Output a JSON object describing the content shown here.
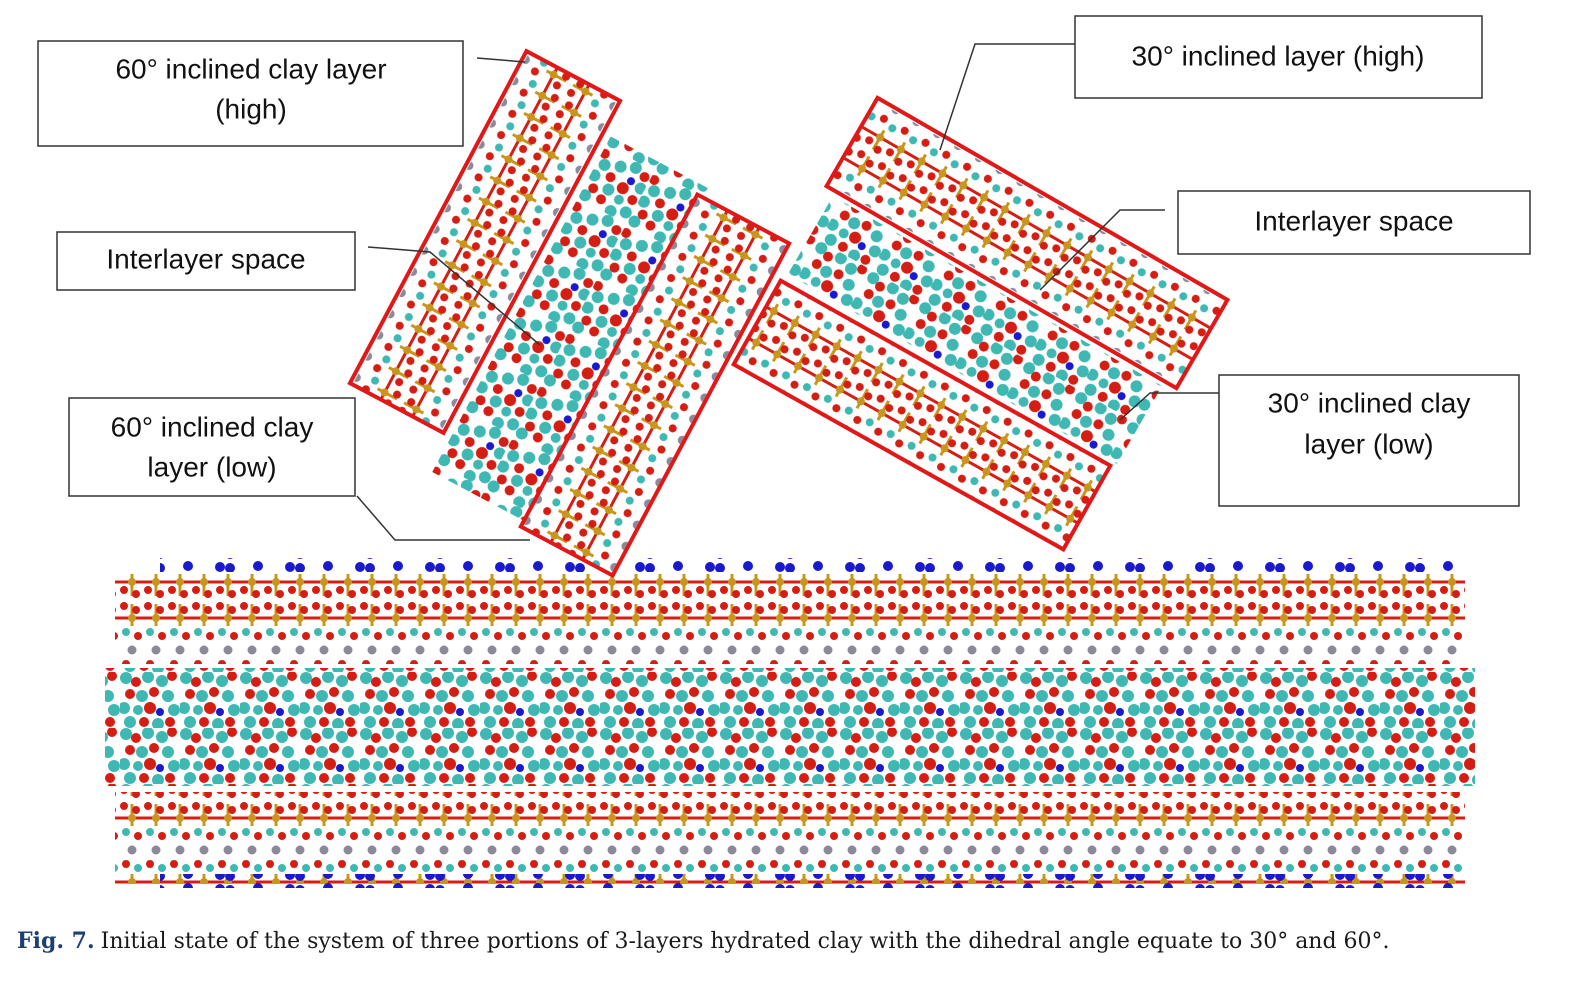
{
  "figure": {
    "labels": [
      {
        "lines": [
          "60°  inclined clay layer",
          "(high)"
        ]
      },
      {
        "lines": [
          "Interlayer space"
        ]
      },
      {
        "lines": [
          "60°  inclined clay",
          "layer (low)"
        ]
      },
      {
        "lines": [
          "30°  inclined layer (high)"
        ]
      },
      {
        "lines": [
          "Interlayer space"
        ]
      },
      {
        "lines": [
          "30°  inclined clay",
          "layer (low)"
        ]
      }
    ],
    "caption": {
      "label": "Fig. 7.",
      "text": "Initial state of the system of three portions of 3-layers hydrated clay with the dihedral angle equate to 30° and 60°."
    }
  }
}
